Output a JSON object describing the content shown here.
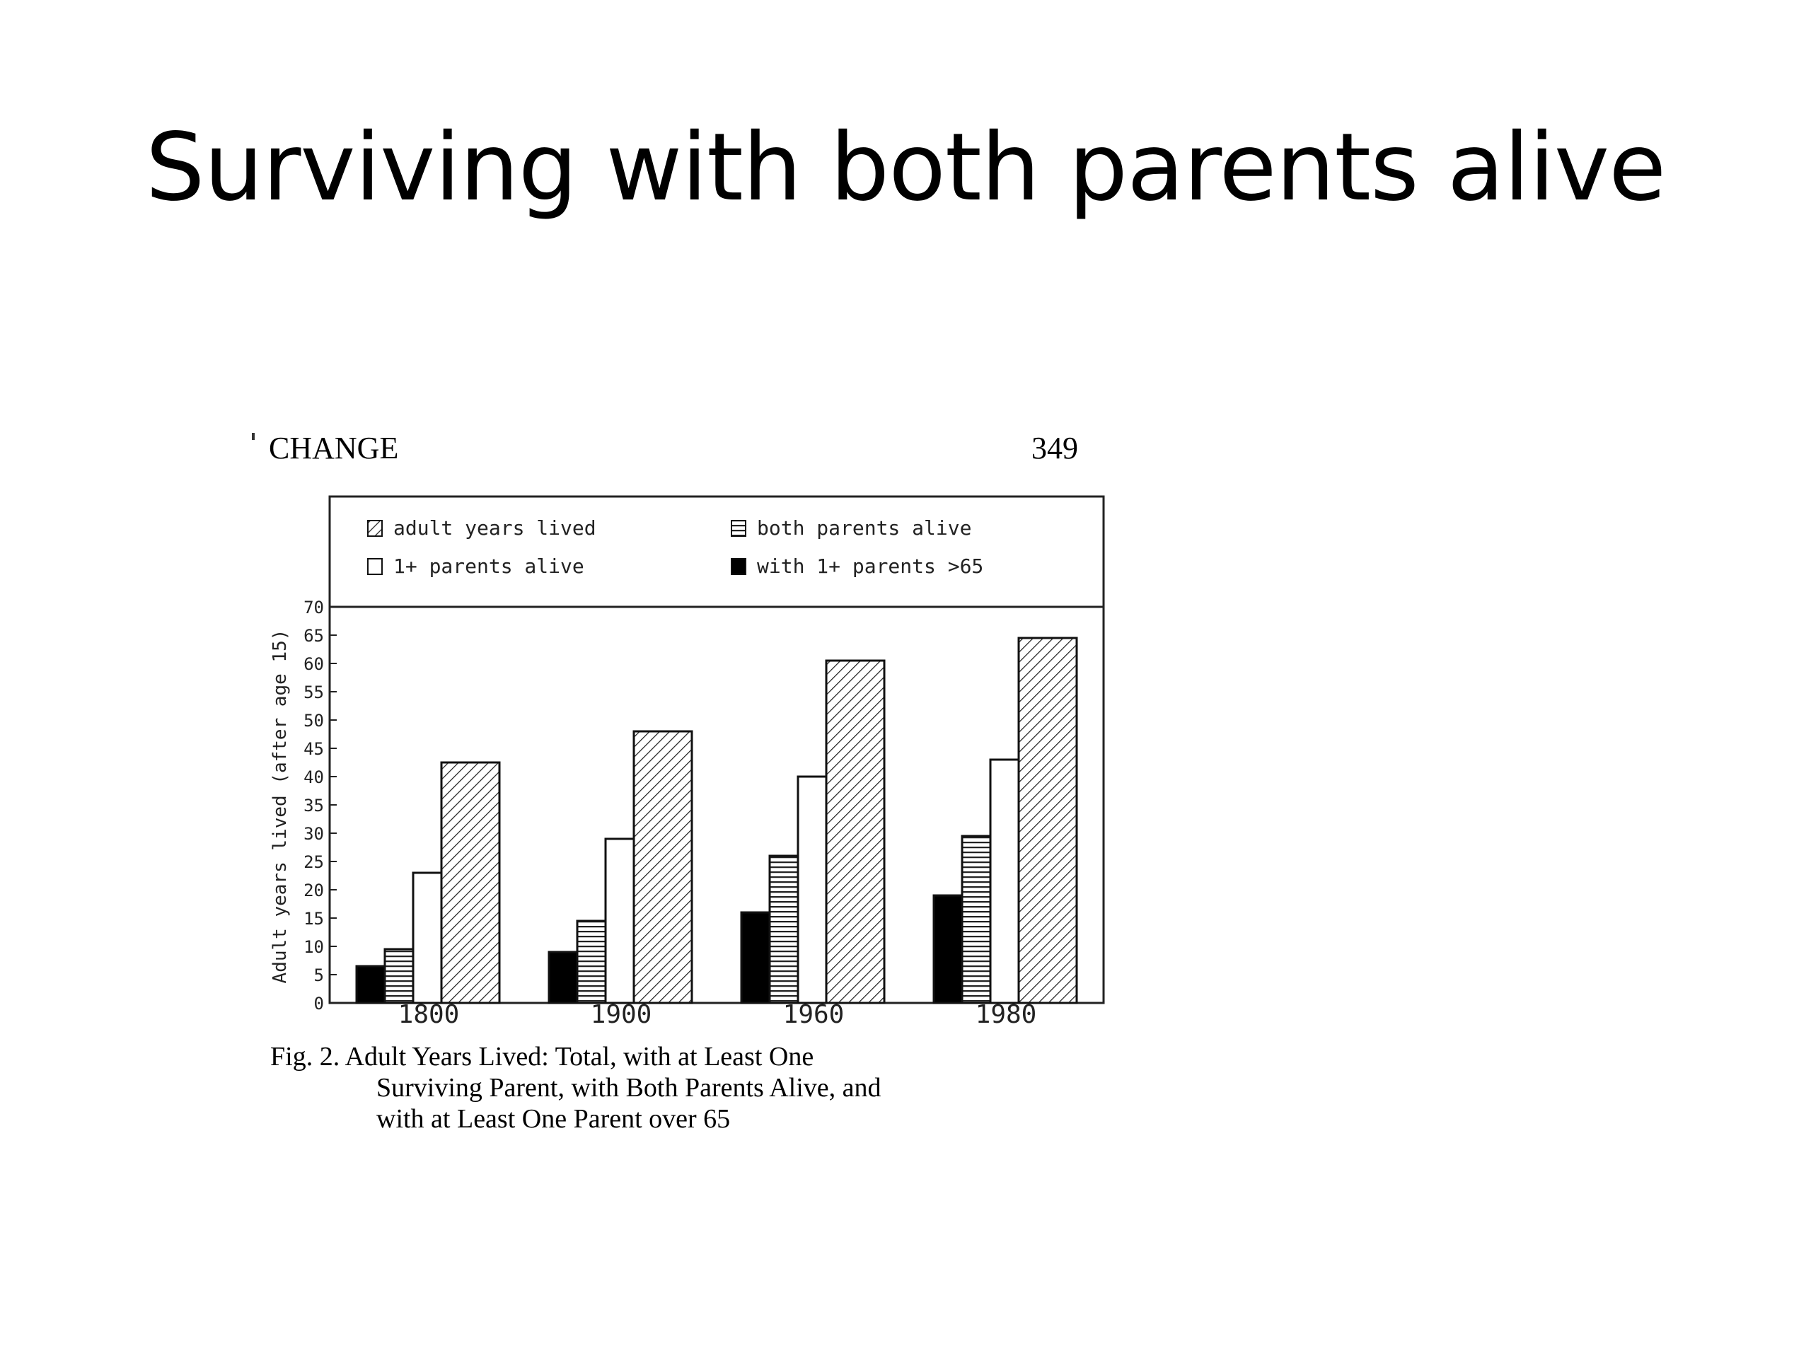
{
  "slide": {
    "title": "Surviving with both parents alive"
  },
  "page": {
    "header_left": "CHANGE",
    "header_right": "349"
  },
  "caption": {
    "line1": "Fig. 2. Adult Years Lived: Total, with at Least One",
    "line2": "Surviving Parent, with Both Parents Alive, and",
    "line3": "with at Least One Parent over 65"
  },
  "chart_data": {
    "type": "bar",
    "categories": [
      "1800",
      "1900",
      "1960",
      "1980"
    ],
    "series": [
      {
        "name": "with 1+ parents >65",
        "key": "over65",
        "pattern": "solid-black",
        "values": [
          6.5,
          9,
          16,
          19
        ]
      },
      {
        "name": "both parents alive",
        "key": "both",
        "pattern": "horizontal-lines",
        "values": [
          9.5,
          14.5,
          26,
          29.5
        ]
      },
      {
        "name": "1+ parents alive",
        "key": "oneplus",
        "pattern": "white",
        "values": [
          23,
          29,
          40,
          43
        ]
      },
      {
        "name": "adult years lived",
        "key": "adult",
        "pattern": "diagonal-hatch",
        "values": [
          42.5,
          48,
          60.5,
          64.5
        ]
      }
    ],
    "legend": [
      {
        "label": "adult years lived",
        "pattern": "diagonal-hatch"
      },
      {
        "label": "both parents alive",
        "pattern": "horizontal-lines"
      },
      {
        "label": "1+ parents alive",
        "pattern": "white"
      },
      {
        "label": "with 1+ parents >65",
        "pattern": "solid-black"
      }
    ],
    "ylabel": "Adult years lived (after age 15)",
    "ylim": [
      0,
      70
    ],
    "yticks": [
      0,
      5,
      10,
      15,
      20,
      25,
      30,
      35,
      40,
      45,
      50,
      55,
      60,
      65,
      70
    ],
    "legend_position": "top",
    "grid": false
  }
}
